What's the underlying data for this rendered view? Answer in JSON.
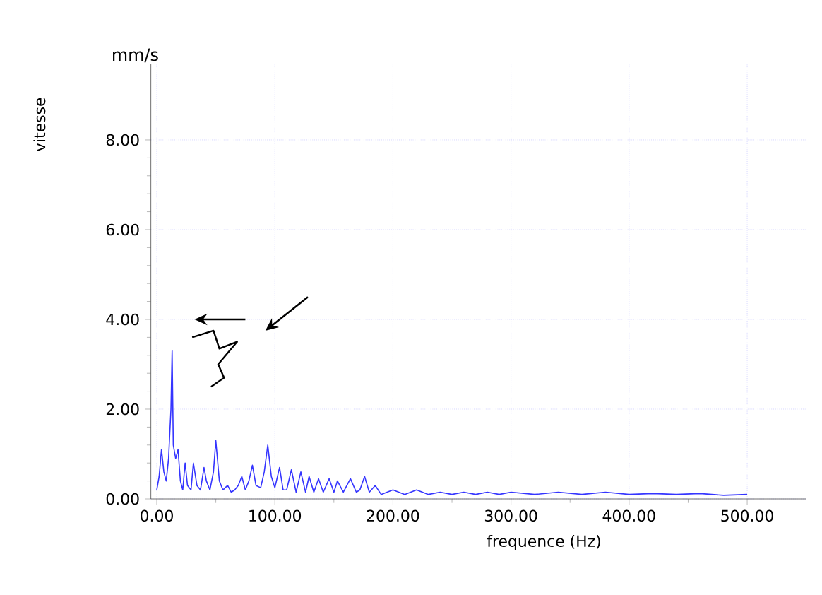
{
  "chart_data": {
    "type": "line",
    "xlabel": "frequence (Hz)",
    "ylabel": "vitesse",
    "annotations": [
      "mm/s"
    ],
    "x": [
      0,
      2,
      4,
      6,
      8,
      10,
      12,
      13,
      14,
      16,
      18,
      20,
      22,
      24,
      26,
      29,
      31,
      34,
      37,
      40,
      42,
      45,
      48,
      50,
      53,
      56,
      60,
      63,
      66,
      69,
      72,
      75,
      78,
      81,
      84,
      88,
      91,
      94,
      97,
      100,
      104,
      107,
      110,
      114,
      118,
      122,
      126,
      129,
      133,
      137,
      141,
      146,
      150,
      153,
      158,
      164,
      169,
      172,
      176,
      180,
      185,
      190,
      200,
      210,
      220,
      230,
      240,
      250,
      260,
      270,
      280,
      290,
      300,
      320,
      340,
      360,
      380,
      400,
      420,
      440,
      460,
      480,
      500
    ],
    "series": [
      {
        "color": "#3535ff",
        "values": [
          0.2,
          0.5,
          1.1,
          0.6,
          0.4,
          0.9,
          2.0,
          3.3,
          1.2,
          0.9,
          1.1,
          0.4,
          0.2,
          0.8,
          0.3,
          0.2,
          0.8,
          0.3,
          0.2,
          0.7,
          0.4,
          0.2,
          0.6,
          1.3,
          0.4,
          0.2,
          0.3,
          0.15,
          0.2,
          0.3,
          0.5,
          0.2,
          0.4,
          0.75,
          0.3,
          0.25,
          0.6,
          1.2,
          0.5,
          0.25,
          0.7,
          0.2,
          0.2,
          0.65,
          0.15,
          0.6,
          0.15,
          0.5,
          0.15,
          0.45,
          0.15,
          0.45,
          0.15,
          0.4,
          0.15,
          0.45,
          0.15,
          0.2,
          0.5,
          0.15,
          0.3,
          0.1,
          0.2,
          0.1,
          0.2,
          0.1,
          0.15,
          0.1,
          0.15,
          0.1,
          0.15,
          0.1,
          0.15,
          0.1,
          0.15,
          0.1,
          0.15,
          0.1,
          0.12,
          0.1,
          0.12,
          0.08,
          0.1
        ]
      }
    ],
    "xlim": [
      -5,
      550
    ],
    "ylim": [
      0,
      9.7
    ],
    "xticks": [
      {
        "value": 0,
        "label": "0.00"
      },
      {
        "value": 100,
        "label": "100.00"
      },
      {
        "value": 200,
        "label": "200.00"
      },
      {
        "value": 300,
        "label": "300.00"
      },
      {
        "value": 400,
        "label": "400.00"
      },
      {
        "value": 500,
        "label": "500.00"
      }
    ],
    "yticks": [
      {
        "value": 0,
        "label": "0.00"
      },
      {
        "value": 2,
        "label": "2.00"
      },
      {
        "value": 4,
        "label": "4.00"
      },
      {
        "value": 6,
        "label": "6.00"
      },
      {
        "value": 8,
        "label": "8.00"
      }
    ],
    "grid": true,
    "marker": "none",
    "line_style": "solid"
  }
}
